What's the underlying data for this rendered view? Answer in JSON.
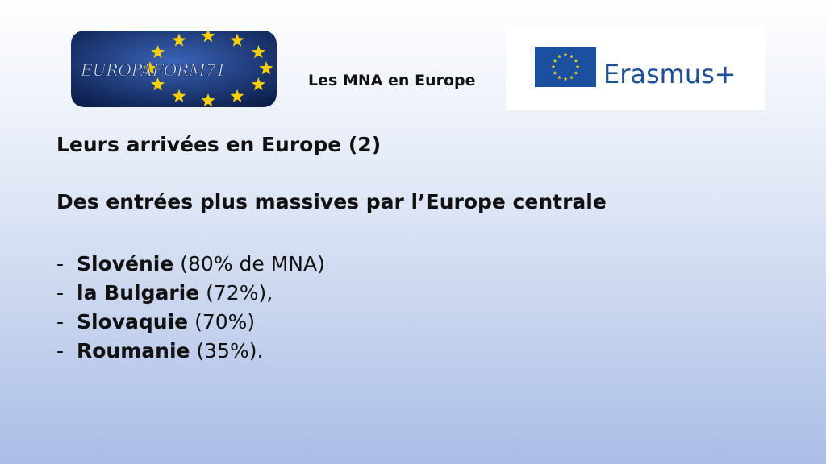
{
  "header": {
    "logo_text": "EUROPAFORM71",
    "title": "Les MNA en Europe",
    "partner_logo": "Erasmus+"
  },
  "heading": "Leurs arrivées en Europe (2)",
  "subheading": "Des entrées plus massives par l’Europe centrale",
  "list": {
    "marker": "-",
    "items": [
      {
        "name": "Slovénie",
        "detail": " (80% de MNA)"
      },
      {
        "name": "la Bulgarie",
        "detail": " (72%),"
      },
      {
        "name": "Slovaquie",
        "detail": " (70%)"
      },
      {
        "name": "Roumanie",
        "detail": " (35%)."
      }
    ]
  }
}
